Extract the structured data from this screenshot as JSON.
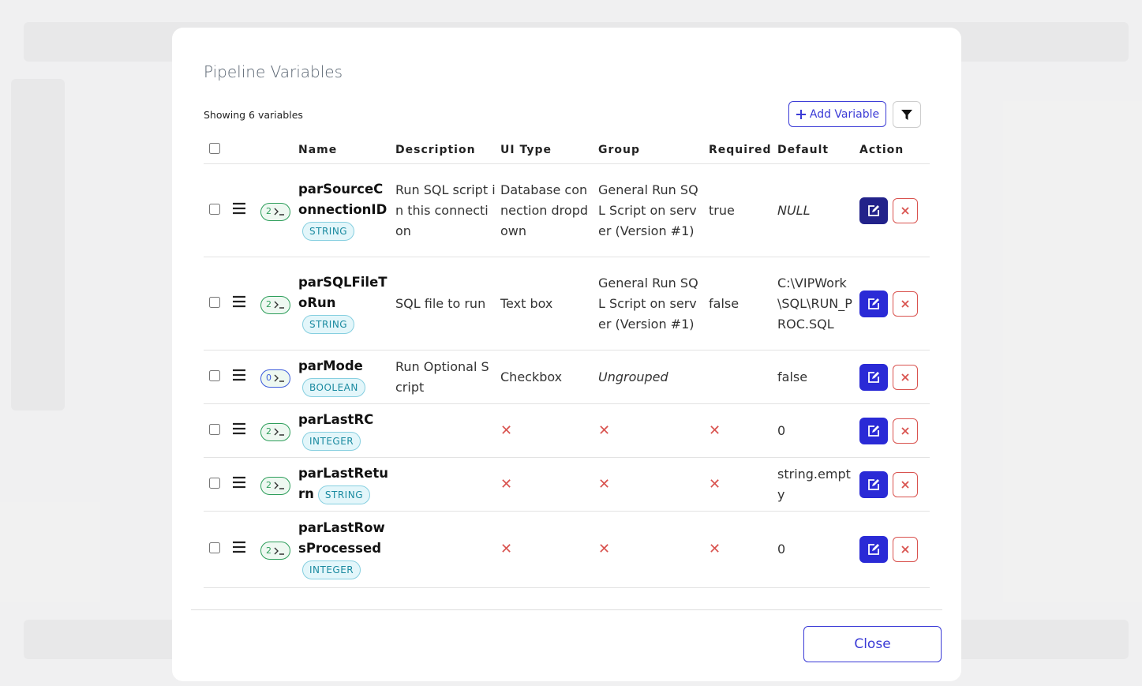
{
  "modal": {
    "title": "Pipeline Variables",
    "count_text": "Showing 6 variables",
    "add_button": "Add Variable",
    "close_button": "Close"
  },
  "table": {
    "headers": [
      "Name",
      "Description",
      "UI Type",
      "Group",
      "Required",
      "Default",
      "Action"
    ],
    "rows": [
      {
        "badge": "2",
        "badge_color": "#2e9e5b",
        "name": "parSourceConnectionID",
        "type": "STRING",
        "description": "Run SQL script in this connection",
        "ui_type": "Database connection dropdown",
        "group": "General Run SQL Script on server (Version #1)",
        "required": "true",
        "default": "NULL",
        "default_italic": true
      },
      {
        "badge": "2",
        "badge_color": "#2e9e5b",
        "name": "parSQLFileToRun",
        "type": "STRING",
        "description": "SQL file to run",
        "ui_type": "Text box",
        "group": "General Run SQL Script on server (Version #1)",
        "required": "false",
        "default": "C:\\VIPWork\\SQL\\RUN_PROC.SQL"
      },
      {
        "badge": "0",
        "badge_color": "#3b5bdb",
        "name": "parMode",
        "type": "BOOLEAN",
        "description": "Run Optional Script",
        "ui_type": "Checkbox",
        "group": "Ungrouped",
        "group_italic": true,
        "required": null,
        "default": "false"
      },
      {
        "badge": "2",
        "badge_color": "#2e9e5b",
        "name": "parLastRC",
        "type": "INTEGER",
        "default": "0"
      },
      {
        "badge": "2",
        "badge_color": "#2e9e5b",
        "name": "parLastReturn",
        "type": "STRING",
        "default": "string.empty"
      },
      {
        "badge": "2",
        "badge_color": "#2e9e5b",
        "name": "parLastRowsProcessed",
        "type": "INTEGER",
        "default": "0"
      }
    ]
  }
}
